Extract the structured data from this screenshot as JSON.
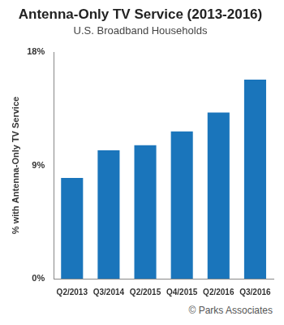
{
  "chart_data": {
    "type": "bar",
    "title": "Antenna-Only TV Service (2013-2016)",
    "subtitle": "U.S. Broadband Households",
    "y_label": "% with Antenna-Only TV Service",
    "categories": [
      "Q2/2013",
      "Q3/2014",
      "Q2/2015",
      "Q4/2015",
      "Q2/2016",
      "Q3/2016"
    ],
    "values": [
      8,
      10.2,
      10.6,
      11.7,
      13.2,
      15.8
    ],
    "color": "#1a75bb",
    "ylim": [
      0,
      18
    ],
    "yticks": [
      {
        "value": 0,
        "label": "0%"
      },
      {
        "value": 9,
        "label": "9%"
      },
      {
        "value": 18,
        "label": "18%"
      }
    ],
    "grid": false,
    "annotations": [
      "© Parks Associates"
    ]
  }
}
